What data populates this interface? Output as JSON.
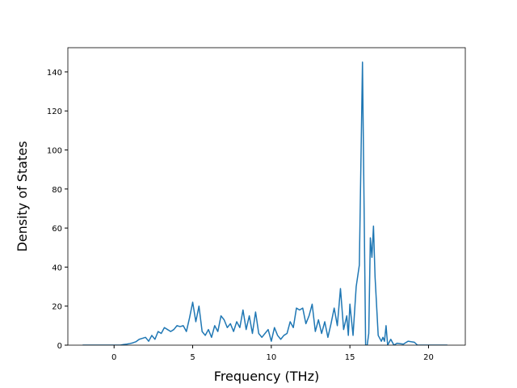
{
  "chart_data": {
    "type": "line",
    "xlabel": "Frequency (THz)",
    "ylabel": "Density of States",
    "x": [
      -2,
      0.4,
      0.6,
      0.8,
      1.0,
      1.2,
      1.4,
      1.6,
      1.8,
      2.0,
      2.2,
      2.4,
      2.6,
      2.8,
      3.0,
      3.2,
      3.4,
      3.6,
      3.8,
      4.0,
      4.2,
      4.4,
      4.6,
      4.8,
      5.0,
      5.2,
      5.4,
      5.6,
      5.8,
      6.0,
      6.2,
      6.4,
      6.6,
      6.8,
      7.0,
      7.2,
      7.4,
      7.6,
      7.8,
      8.0,
      8.2,
      8.4,
      8.6,
      8.8,
      9.0,
      9.2,
      9.4,
      9.6,
      9.8,
      10.0,
      10.2,
      10.4,
      10.6,
      10.8,
      11.0,
      11.2,
      11.4,
      11.6,
      11.8,
      12.0,
      12.2,
      12.4,
      12.6,
      12.8,
      13.0,
      13.2,
      13.4,
      13.6,
      13.8,
      14.0,
      14.2,
      14.4,
      14.6,
      14.8,
      14.9,
      15.0,
      15.2,
      15.4,
      15.6,
      15.8,
      16.0,
      16.1,
      16.2,
      16.3,
      16.4,
      16.5,
      16.6,
      16.8,
      17.0,
      17.1,
      17.2,
      17.3,
      17.4,
      17.6,
      17.8,
      18.0,
      18.4,
      18.7,
      19.1,
      19.3,
      21.2
    ],
    "values": [
      0,
      0,
      0.3,
      0.5,
      0.8,
      1.2,
      1.8,
      3,
      3.5,
      4,
      2,
      5,
      3,
      7,
      6,
      9,
      8,
      7,
      8,
      10,
      9.5,
      10,
      7,
      14,
      22,
      12,
      20,
      7,
      5,
      8,
      4,
      10,
      7,
      15,
      13,
      9,
      11,
      7,
      12,
      9,
      18,
      8,
      15,
      6,
      17,
      6,
      4,
      6,
      8,
      2,
      9,
      5,
      3,
      5,
      6,
      12,
      9,
      19,
      18,
      19,
      11,
      15,
      21,
      7,
      13,
      6,
      12,
      4,
      11,
      19,
      10,
      29,
      8,
      15,
      5,
      21,
      5,
      30,
      41,
      145,
      0,
      0,
      6,
      55,
      45,
      61,
      35,
      5,
      2,
      4,
      2,
      10,
      0,
      3,
      0,
      1,
      0.5,
      2,
      1.5,
      0,
      0
    ],
    "color": "#1f77b4",
    "xlim": [
      -2.94,
      22.34
    ],
    "ylim": [
      0,
      152.4
    ],
    "xticks": [
      0,
      5,
      10,
      15,
      20
    ],
    "yticks": [
      0,
      20,
      40,
      60,
      80,
      100,
      120,
      140
    ]
  }
}
